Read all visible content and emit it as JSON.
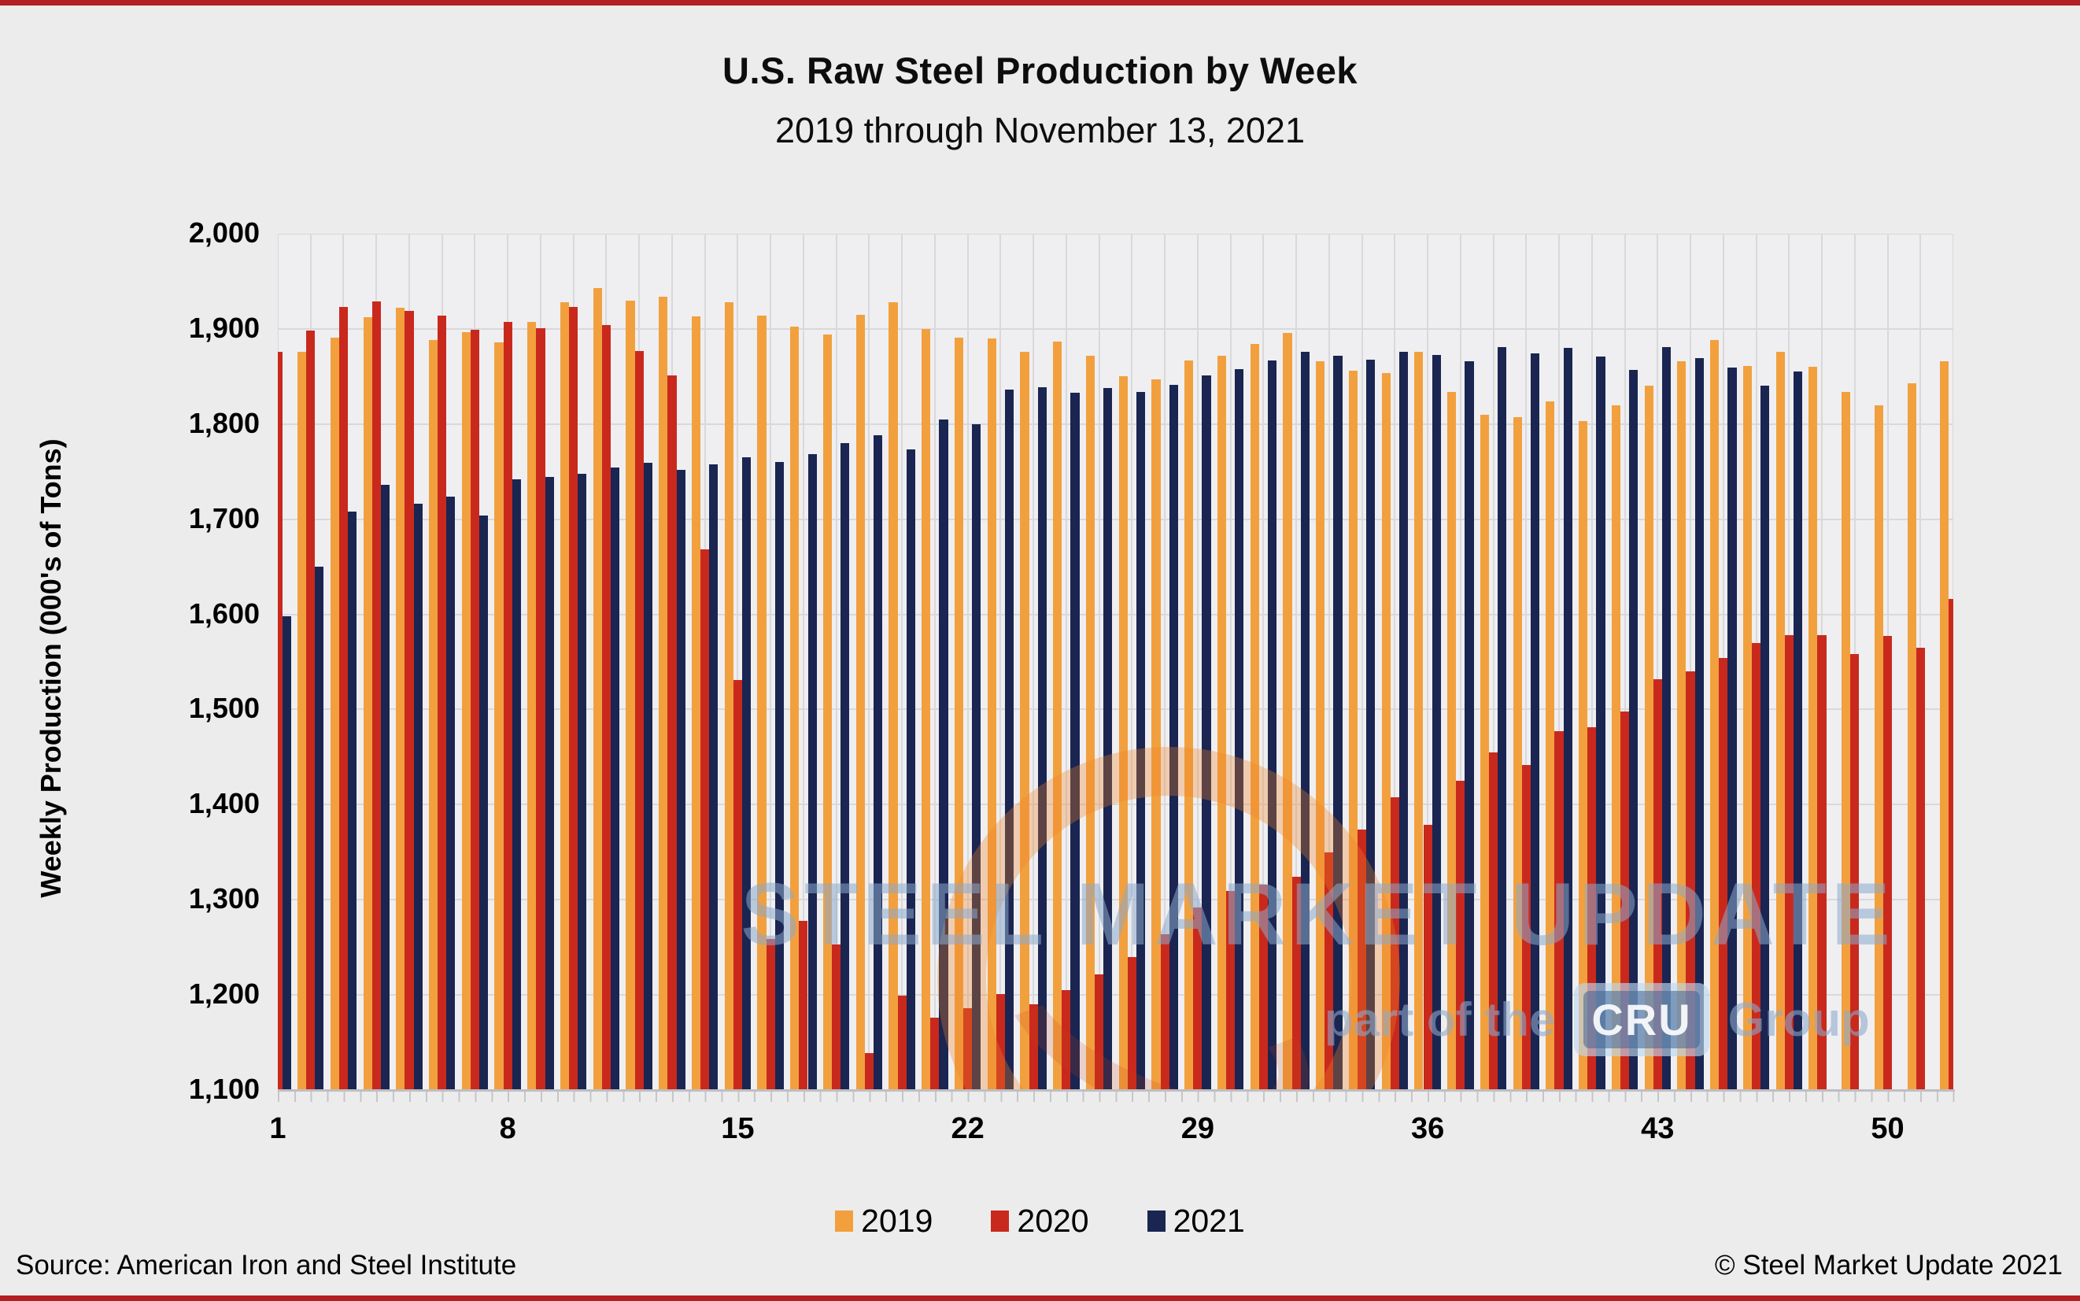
{
  "page": {
    "title": "U.S. Raw Steel Production by Week",
    "subtitle": "2019 through November 13, 2021",
    "source_note": "Source: American Iron and Steel Institute",
    "copyright_note": "© Steel Market Update 2021",
    "accent_rule_color": "#b22024",
    "background_color": "#ececec"
  },
  "watermark": {
    "main_text": "STEEL MARKET UPDATE",
    "sub_text_prefix": "part of the",
    "cru_text": "CRU",
    "sub_text_suffix": "Group"
  },
  "chart_data": {
    "type": "bar",
    "title": "U.S. Raw Steel Production by Week",
    "subtitle": "2019 through November 13, 2021",
    "xlabel": "",
    "ylabel": "Weekly Production (000's of Tons)",
    "ylim": [
      1100,
      2000
    ],
    "y_tick_step": 100,
    "y_tick_labels": [
      "1,100",
      "1,200",
      "1,300",
      "1,400",
      "1,500",
      "1,600",
      "1,700",
      "1,800",
      "1,900",
      "2,000"
    ],
    "grid": true,
    "legend_position": "bottom",
    "categories": [
      1,
      2,
      3,
      4,
      5,
      6,
      7,
      8,
      9,
      10,
      11,
      12,
      13,
      14,
      15,
      16,
      17,
      18,
      19,
      20,
      21,
      22,
      23,
      24,
      25,
      26,
      27,
      28,
      29,
      30,
      31,
      32,
      33,
      34,
      35,
      36,
      37,
      38,
      39,
      40,
      41,
      42,
      43,
      44,
      45,
      46,
      47,
      48,
      49,
      50,
      51,
      52
    ],
    "x_tick_labels": [
      1,
      8,
      15,
      22,
      29,
      36,
      43,
      50
    ],
    "series": [
      {
        "name": "2019",
        "color": "#f2a03e",
        "values": [
          null,
          1876,
          1891,
          1912,
          1922,
          1888,
          1897,
          1886,
          1907,
          1928,
          1943,
          1930,
          1934,
          1913,
          1928,
          1914,
          1902,
          1894,
          1915,
          1928,
          1900,
          1891,
          1890,
          1876,
          1887,
          1872,
          1850,
          1847,
          1867,
          1872,
          1884,
          1896,
          1866,
          1856,
          1854,
          1876,
          1834,
          1810,
          1807,
          1824,
          1803,
          1820,
          1840,
          1866,
          1888,
          1861,
          1876,
          1860,
          1834,
          1820,
          1843,
          1866
        ]
      },
      {
        "name": "2020",
        "color": "#c9291d",
        "values": [
          1876,
          1898,
          1923,
          1929,
          1919,
          1914,
          1899,
          1907,
          1901,
          1923,
          1904,
          1877,
          1851,
          1668,
          1531,
          1259,
          1278,
          1253,
          1139,
          1199,
          1176,
          1186,
          1201,
          1190,
          1205,
          1222,
          1240,
          1264,
          1292,
          1309,
          1316,
          1324,
          1350,
          1374,
          1408,
          1379,
          1425,
          1455,
          1442,
          1477,
          1481,
          1498,
          1532,
          1540,
          1554,
          1570,
          1578,
          1578,
          1558,
          1577,
          1565,
          1616
        ]
      },
      {
        "name": "2021",
        "color": "#1a2551",
        "values": [
          1598,
          1650,
          1708,
          1736,
          1716,
          1724,
          1704,
          1742,
          1744,
          1748,
          1754,
          1759,
          1752,
          1758,
          1765,
          1760,
          1768,
          1780,
          1788,
          1773,
          1805,
          1800,
          1836,
          1839,
          1833,
          1838,
          1834,
          1841,
          1851,
          1858,
          1867,
          1876,
          1872,
          1868,
          1876,
          1873,
          1866,
          1881,
          1874,
          1880,
          1871,
          1857,
          1881,
          1869,
          1859,
          1840,
          1855,
          null,
          null,
          null,
          null,
          null
        ]
      }
    ]
  }
}
